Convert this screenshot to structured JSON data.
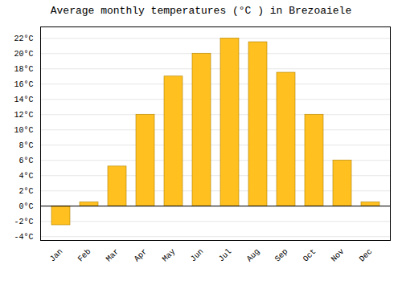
{
  "chart_data": {
    "type": "bar",
    "title": "Average monthly temperatures (°C ) in Brezoaiele",
    "categories": [
      "Jan",
      "Feb",
      "Mar",
      "Apr",
      "May",
      "Jun",
      "Jul",
      "Aug",
      "Sep",
      "Oct",
      "Nov",
      "Dec"
    ],
    "values": [
      -2.5,
      0.5,
      5.2,
      12.0,
      17.0,
      20.0,
      22.0,
      21.5,
      17.5,
      12.0,
      6.0,
      0.5
    ],
    "color": "#FFC020",
    "ylim": [
      -4.5,
      23.5
    ],
    "yticks": [
      {
        "value": -4,
        "label": "-4°C"
      },
      {
        "value": -2,
        "label": "-2°C"
      },
      {
        "value": 0,
        "label": "0°C"
      },
      {
        "value": 2,
        "label": "2°C"
      },
      {
        "value": 4,
        "label": "4°C"
      },
      {
        "value": 6,
        "label": "6°C"
      },
      {
        "value": 8,
        "label": "8°C"
      },
      {
        "value": 10,
        "label": "10°C"
      },
      {
        "value": 12,
        "label": "12°C"
      },
      {
        "value": 14,
        "label": "14°C"
      },
      {
        "value": 16,
        "label": "16°C"
      },
      {
        "value": 18,
        "label": "18°C"
      },
      {
        "value": 20,
        "label": "20°C"
      },
      {
        "value": 22,
        "label": "22°C"
      }
    ],
    "grid": true
  }
}
